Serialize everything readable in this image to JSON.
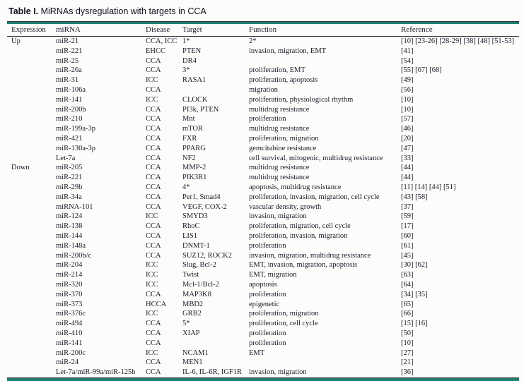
{
  "colors": {
    "accent_teal": "#1c8170",
    "text": "#181a28",
    "rule_dark": "#2a2c38"
  },
  "title": {
    "label": "Table I.",
    "text": " MiRNAs dysregulation with targets in CCA"
  },
  "table": {
    "columns": [
      "Expression",
      "miRNA",
      "Disease",
      "Target",
      "Function",
      "Reference"
    ],
    "rows": [
      {
        "expression": "Up",
        "mirna": "miR-21",
        "disease": "CCA, ICC",
        "target": "1*",
        "function": "2*",
        "reference": "[10] [23-26] [28-29] [38] [48] [51-53]"
      },
      {
        "expression": "",
        "mirna": "miR-221",
        "disease": "EHCC",
        "target": "PTEN",
        "function": "invasion, migration, EMT",
        "reference": "[41]"
      },
      {
        "expression": "",
        "mirna": "miR-25",
        "disease": "CCA",
        "target": "DR4",
        "function": "",
        "reference": "[54]"
      },
      {
        "expression": "",
        "mirna": "miR-26a",
        "disease": "CCA",
        "target": "3*",
        "function": "proliferation, EMT",
        "reference": "[55] [67] [68]"
      },
      {
        "expression": "",
        "mirna": "miR-31",
        "disease": "ICC",
        "target": "RASA1",
        "function": "proliferation, apoptosis",
        "reference": "[49]"
      },
      {
        "expression": "",
        "mirna": "miR-106a",
        "disease": "CCA",
        "target": "",
        "function": "migration",
        "reference": "[56]"
      },
      {
        "expression": "",
        "mirna": "miR-141",
        "disease": "ICC",
        "target": "CLOCK",
        "function": "proliferation, physiological rhythm",
        "reference": "[10]"
      },
      {
        "expression": "",
        "mirna": "miR-200b",
        "disease": "CCA",
        "target": "PI3k, PTEN",
        "function": "multidrug resistance",
        "reference": "[10]"
      },
      {
        "expression": "",
        "mirna": "miR-210",
        "disease": "CCA",
        "target": "Mnt",
        "function": "proliferation",
        "reference": "[57]"
      },
      {
        "expression": "",
        "mirna": "miR-199a-3p",
        "disease": "CCA",
        "target": "mTOR",
        "function": "multidrug resistance",
        "reference": "[46]"
      },
      {
        "expression": "",
        "mirna": "miR-421",
        "disease": "CCA",
        "target": "FXR",
        "function": "proliferation, migration",
        "reference": "[20]"
      },
      {
        "expression": "",
        "mirna": "miR-130a-3p",
        "disease": "CCA",
        "target": "PPARG",
        "function": "gemcitabine resistance",
        "reference": "[47]"
      },
      {
        "expression": "",
        "mirna": "Let-7a",
        "disease": "CCA",
        "target": "NF2",
        "function": "cell survival, mitogenic, multidrug resistance",
        "reference": "[33]"
      },
      {
        "expression": "Down",
        "mirna": "miR-205",
        "disease": "CCA",
        "target": "MMP-2",
        "function": "multidrug resistance",
        "reference": "[44]"
      },
      {
        "expression": "",
        "mirna": "miR-221",
        "disease": "CCA",
        "target": "PIK3R1",
        "function": "multidrug resistance",
        "reference": "[44]"
      },
      {
        "expression": "",
        "mirna": "miR-29b",
        "disease": "CCA",
        "target": "4*",
        "function": "apoptosis, multidrug resistance",
        "reference": "[11] [14] [44] [51]"
      },
      {
        "expression": "",
        "mirna": "miR-34a",
        "disease": "CCA",
        "target": "Per1, Smad4",
        "function": "proliferation, invasion, migration, cell cycle",
        "reference": "[43] [58]"
      },
      {
        "expression": "",
        "mirna": "miRNA-101",
        "disease": "CCA",
        "target": "VEGF, COX-2",
        "function": "vascular density, growth",
        "reference": "[37]"
      },
      {
        "expression": "",
        "mirna": "miR-124",
        "disease": "ICC",
        "target": "SMYD3",
        "function": "invasion, migration",
        "reference": "[59]"
      },
      {
        "expression": "",
        "mirna": "miR-138",
        "disease": "CCA",
        "target": "RhoC",
        "function": "proliferation, migration, cell cycle",
        "reference": "[17]"
      },
      {
        "expression": "",
        "mirna": "miR-144",
        "disease": "CCA",
        "target": "LIS1",
        "function": "proliferation, invasion, migration",
        "reference": "[60]"
      },
      {
        "expression": "",
        "mirna": "miR-148a",
        "disease": "CCA",
        "target": "DNMT-1",
        "function": "proliferation",
        "reference": "[61]"
      },
      {
        "expression": "",
        "mirna": "miR-200b/c",
        "disease": "CCA",
        "target": "SUZ12, ROCK2",
        "function": "invasion, migration, multidrug resistance",
        "reference": "[45]"
      },
      {
        "expression": "",
        "mirna": "miR-204",
        "disease": "ICC",
        "target": "Slug, Bcl-2",
        "function": "EMT, invasion, migration, apoptosis",
        "reference": "[30] [62]"
      },
      {
        "expression": "",
        "mirna": "miR-214",
        "disease": "ICC",
        "target": "Twist",
        "function": "EMT, migration",
        "reference": "[63]"
      },
      {
        "expression": "",
        "mirna": "miR-320",
        "disease": "ICC",
        "target": "Mcl-1/Bcl-2",
        "function": "apoptosis",
        "reference": "[64]"
      },
      {
        "expression": "",
        "mirna": "miR-370",
        "disease": "CCA",
        "target": "MAP3K8",
        "function": "proliferation",
        "reference": "[34] [35]"
      },
      {
        "expression": "",
        "mirna": "miR-373",
        "disease": "HCCA",
        "target": "MBD2",
        "function": "epigenetic",
        "reference": "[65]"
      },
      {
        "expression": "",
        "mirna": "miR-376c",
        "disease": "ICC",
        "target": "GRB2",
        "function": "proliferation, migration",
        "reference": "[66]"
      },
      {
        "expression": "",
        "mirna": "miR-494",
        "disease": "CCA",
        "target": "5*",
        "function": "proliferation, cell cycle",
        "reference": "[15] [16]"
      },
      {
        "expression": "",
        "mirna": "miR-410",
        "disease": "CCA",
        "target": "XIAP",
        "function": "proliferation",
        "reference": "[50]"
      },
      {
        "expression": "",
        "mirna": "miR-141",
        "disease": "CCA",
        "target": "",
        "function": "proliferation",
        "reference": "[10]"
      },
      {
        "expression": "",
        "mirna": "miR-200c",
        "disease": "ICC",
        "target": "NCAM1",
        "function": "EMT",
        "reference": "[27]"
      },
      {
        "expression": "",
        "mirna": "miR-24",
        "disease": "CCA",
        "target": "MEN1",
        "function": "",
        "reference": "[21]"
      },
      {
        "expression": "",
        "mirna": "Let-7a/miR-99a/miR-125b",
        "disease": "CCA",
        "target": "IL-6, IL-6R, IGF1R",
        "function": "invasion, migration",
        "reference": "[36]"
      }
    ]
  }
}
